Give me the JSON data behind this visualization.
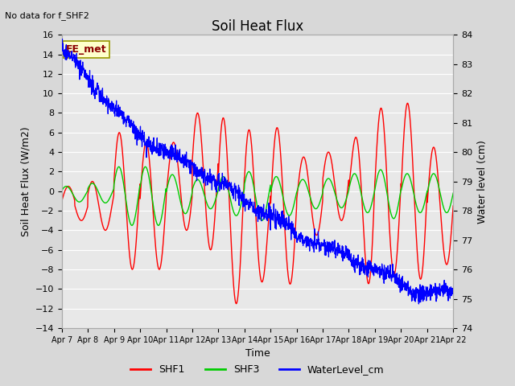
{
  "title": "Soil Heat Flux",
  "no_data_text": "No data for f_SHF2",
  "xlabel": "Time",
  "ylabel_left": "Soil Heat Flux (W/m2)",
  "ylabel_right": "Water level (cm)",
  "ylim_left": [
    -14,
    16
  ],
  "ylim_right": [
    74.0,
    84.0
  ],
  "yticks_left": [
    -14,
    -12,
    -10,
    -8,
    -6,
    -4,
    -2,
    0,
    2,
    4,
    6,
    8,
    10,
    12,
    14,
    16
  ],
  "yticks_right": [
    74.0,
    75.0,
    76.0,
    77.0,
    78.0,
    79.0,
    80.0,
    81.0,
    82.0,
    83.0,
    84.0
  ],
  "xtick_labels": [
    "Apr 7",
    "Apr 8",
    "Apr 9",
    "Apr 10",
    "Apr 11",
    "Apr 12",
    "Apr 13",
    "Apr 14",
    "Apr 15",
    "Apr 16",
    "Apr 17",
    "Apr 18",
    "Apr 19",
    "Apr 20",
    "Apr 21",
    "Apr 22"
  ],
  "shf1_color": "#ff0000",
  "shf3_color": "#00cc00",
  "water_color": "#0000ff",
  "bg_color": "#d8d8d8",
  "plot_bg": "#e8e8e8",
  "grid_color": "#ffffff",
  "annotation_text": "EE_met",
  "annotation_color": "#8b0000",
  "annotation_bg": "#ffffcc",
  "annotation_border": "#999900",
  "legend_entries": [
    "SHF1",
    "SHF3",
    "WaterLevel_cm"
  ],
  "n_points": 1500
}
